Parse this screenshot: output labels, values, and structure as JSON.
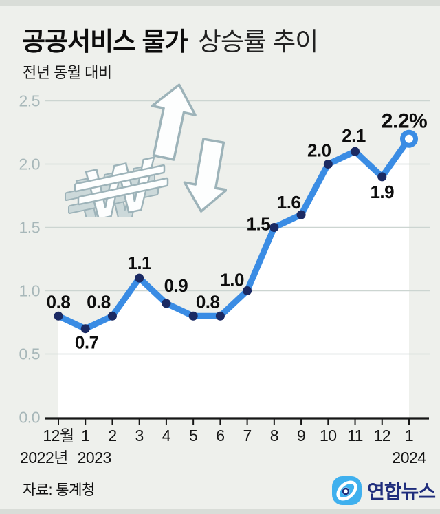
{
  "header": {
    "title_bold": "공공서비스 물가",
    "title_regular": "상승률 추이",
    "subtitle": "전년 동월 대비"
  },
  "chart_data": {
    "type": "line",
    "title": "공공서비스 물가 상승률 추이",
    "subtitle": "전년 동월 대비",
    "categories": [
      "12월",
      "1",
      "2",
      "3",
      "4",
      "5",
      "6",
      "7",
      "8",
      "9",
      "10",
      "11",
      "12",
      "1"
    ],
    "values": [
      0.8,
      0.7,
      0.8,
      1.1,
      0.9,
      0.8,
      0.8,
      1.0,
      1.5,
      1.6,
      2.0,
      2.1,
      1.9,
      2.2
    ],
    "unit": "%",
    "last_label": "2.2%",
    "year_labels": [
      {
        "text": "2022년",
        "index": 0
      },
      {
        "text": "2023",
        "index": 1
      },
      {
        "text": "2024",
        "index": 13
      }
    ],
    "y_ticks": [
      "0.0",
      "0.5",
      "1.0",
      "1.5",
      "2.0",
      "2.5"
    ],
    "ylim": [
      0.0,
      2.5
    ],
    "grid": true,
    "legend": "none",
    "line_color": "#3a8ce4",
    "point_color": "#1b2a63",
    "area_fill": "#ffffff",
    "grid_color": "#ccd5d1",
    "tick_label_color": "#a7b7b9",
    "axis_color": "#161616",
    "label_color": "#0d0d0d"
  },
  "footer": {
    "source": "자료: 통계청",
    "logo_text": "연합뉴스"
  },
  "colors": {
    "background": "#eef0ec",
    "accent_blue": "#3a8ce4",
    "logo_blue": "#3fb0ee",
    "logo_navy": "#1f2d7c"
  }
}
